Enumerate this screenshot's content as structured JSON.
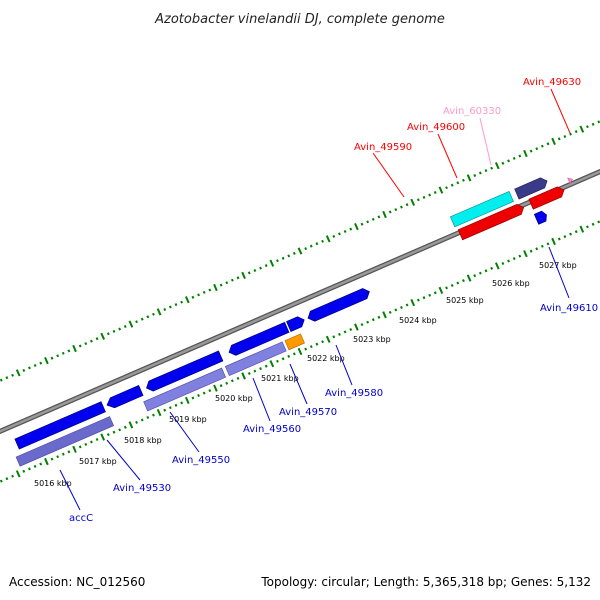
{
  "title": "Azotobacter vinelandii DJ, complete genome",
  "accession": "Accession: NC_012560",
  "topology": "Topology: circular; Length: 5,365,318 bp; Genes: 5,132",
  "colors": {
    "red": "#ff0000",
    "blue": "#0000ff",
    "pink": "#ff99cc",
    "cyan": "#00ffff",
    "dark_purple": "#4b4b9e",
    "light_purple": "#8080e0",
    "orange": "#ff9900",
    "backbone": "#808080",
    "ticks": "#008000"
  },
  "kbp_labels": [
    "5016 kbp",
    "5017 kbp",
    "5018 kbp",
    "5019 kbp",
    "5020 kbp",
    "5021 kbp",
    "5022 kbp",
    "5023 kbp",
    "5024 kbp",
    "5025 kbp",
    "5026 kbp",
    "5027 kbp"
  ],
  "genes_above": [
    {
      "label": "Avin_49590",
      "color": "red"
    },
    {
      "label": "Avin_49600",
      "color": "red"
    },
    {
      "label": "Avin_60330",
      "color": "pink"
    },
    {
      "label": "Avin_49630",
      "color": "red"
    }
  ],
  "genes_below": [
    {
      "label": "accC",
      "color": "blue"
    },
    {
      "label": "Avin_49530",
      "color": "blue"
    },
    {
      "label": "Avin_49550",
      "color": "blue"
    },
    {
      "label": "Avin_49560",
      "color": "blue"
    },
    {
      "label": "Avin_49570",
      "color": "blue"
    },
    {
      "label": "Avin_49580",
      "color": "blue"
    },
    {
      "label": "Avin_49610",
      "color": "blue"
    }
  ]
}
